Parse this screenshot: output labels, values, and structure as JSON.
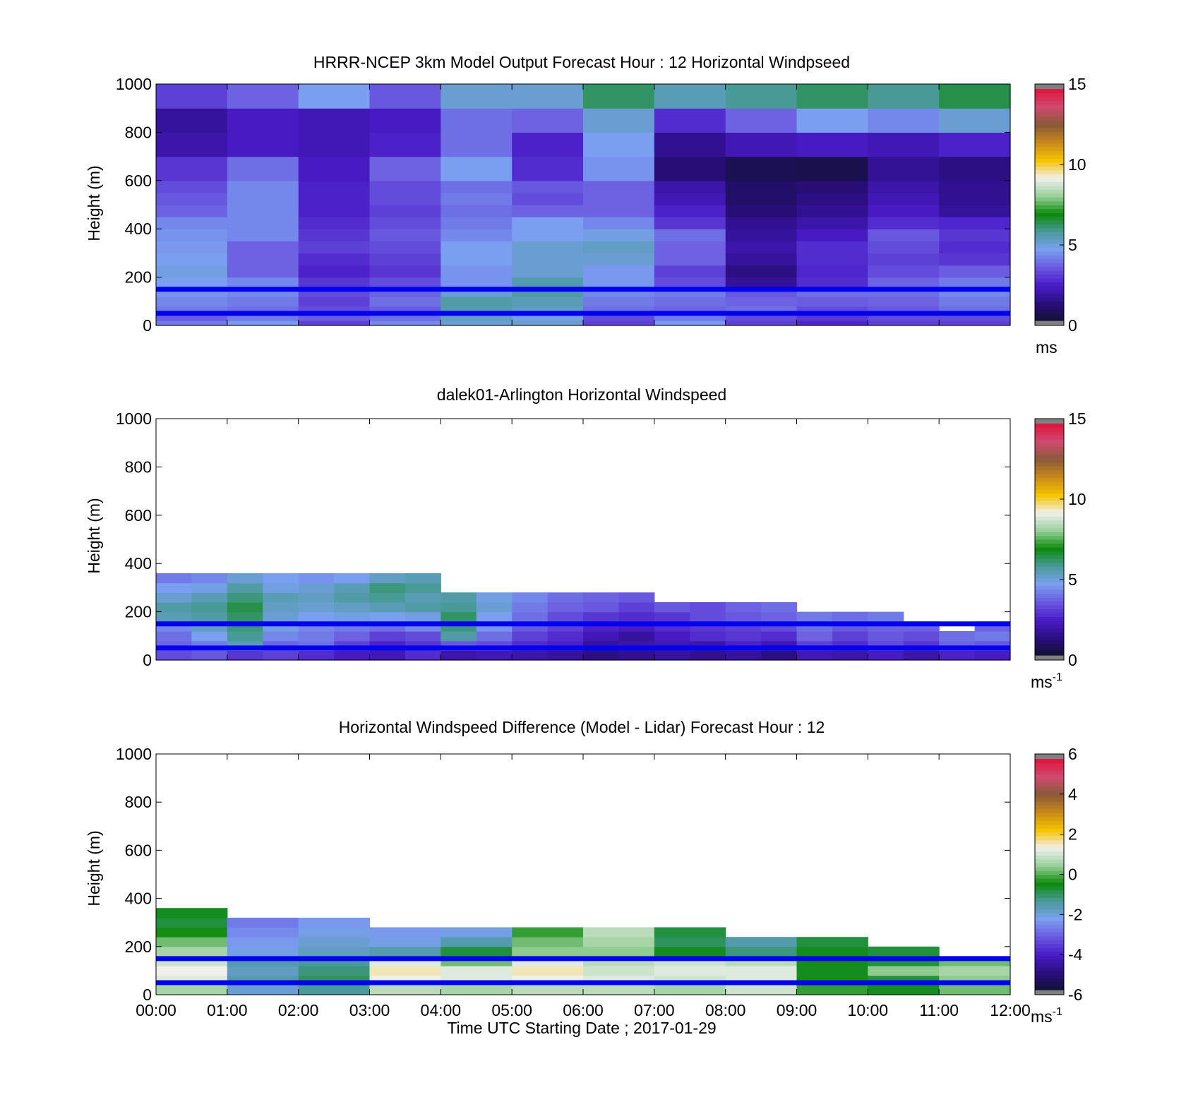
{
  "x_axis": {
    "ticks": [
      "00:00",
      "01:00",
      "02:00",
      "03:00",
      "04:00",
      "05:00",
      "06:00",
      "07:00",
      "08:00",
      "09:00",
      "10:00",
      "11:00",
      "12:00"
    ],
    "label": "Time UTC  Starting Date ; 2017-01-29"
  },
  "y_axis": {
    "label": "Height (m)",
    "ticks": [
      0,
      200,
      400,
      600,
      800,
      1000
    ]
  },
  "reference_lines_m": [
    50,
    150
  ],
  "reference_line_color": "#0000ee",
  "colormaps": {
    "windspeed": [
      "#111133",
      "#2a0e80",
      "#4a1cc8",
      "#6a5ae0",
      "#7aa0f0",
      "#4a9a9a",
      "#0a8a0a",
      "#9ad09a",
      "#f0f0f0",
      "#f5c400",
      "#c88a1a",
      "#8a5a3a",
      "#d04a70",
      "#e0143c"
    ],
    "difference": [
      "#111133",
      "#2a0e80",
      "#4a1cc8",
      "#6a5ae0",
      "#7aa0f0",
      "#4a9a9a",
      "#0a8a0a",
      "#9ad09a",
      "#f0f0f0",
      "#f5c400",
      "#c88a1a",
      "#8a5a3a",
      "#d04a70",
      "#e0143c"
    ]
  },
  "chart_data": [
    {
      "type": "heatmap",
      "title": "HRRR-NCEP 3km Model Output   Forecast Hour : 12 Horizontal Windpseed",
      "ylabel": "Height (m)",
      "ylim": [
        0,
        1000
      ],
      "xlim": [
        "00:00",
        "12:00"
      ],
      "colorbar": {
        "range": [
          0,
          15
        ],
        "ticks": [
          0,
          5,
          10,
          15
        ],
        "unit": "ms",
        "unit_sup": "",
        "colormap": "windspeed"
      },
      "time_bins_h": [
        0,
        1,
        2,
        3,
        4,
        5,
        6,
        7,
        8,
        9,
        10,
        11,
        12
      ],
      "height_bins_m": [
        0,
        20,
        40,
        60,
        80,
        120,
        160,
        200,
        250,
        300,
        350,
        400,
        450,
        500,
        550,
        600,
        700,
        800,
        900,
        1000
      ],
      "values_ms": [
        [
          4.0,
          4.5,
          3.0,
          4.2,
          5.0,
          5.0,
          3.0,
          4.5,
          3.0,
          2.5,
          3.0,
          3.0
        ],
        [
          3.5,
          4.0,
          3.5,
          3.8,
          5.2,
          4.8,
          3.2,
          4.0,
          3.2,
          2.8,
          3.2,
          3.2
        ],
        [
          3.8,
          3.5,
          3.0,
          4.0,
          5.5,
          5.0,
          3.5,
          3.8,
          3.5,
          3.0,
          3.0,
          3.5
        ],
        [
          4.0,
          3.8,
          3.2,
          3.5,
          5.5,
          5.2,
          3.8,
          3.6,
          3.8,
          3.2,
          3.4,
          3.8
        ],
        [
          4.2,
          4.0,
          3.0,
          3.8,
          5.6,
          5.4,
          4.0,
          3.8,
          3.6,
          3.5,
          3.6,
          4.0
        ],
        [
          4.4,
          4.2,
          3.2,
          3.6,
          5.0,
          5.6,
          4.2,
          4.0,
          3.4,
          3.8,
          3.8,
          4.2
        ],
        [
          4.6,
          4.2,
          2.8,
          3.2,
          4.4,
          5.5,
          4.5,
          3.2,
          1.5,
          2.6,
          3.6,
          4.0
        ],
        [
          4.8,
          3.6,
          2.4,
          2.8,
          4.4,
          5.0,
          4.5,
          3.0,
          1.2,
          2.5,
          3.2,
          3.5
        ],
        [
          4.6,
          3.6,
          2.6,
          3.0,
          4.6,
          5.0,
          5.0,
          3.6,
          1.6,
          2.6,
          3.0,
          2.8
        ],
        [
          4.5,
          3.6,
          3.0,
          3.2,
          4.6,
          5.0,
          5.2,
          3.6,
          1.8,
          2.6,
          3.2,
          2.6
        ],
        [
          4.4,
          4.2,
          2.8,
          3.4,
          4.2,
          4.6,
          4.8,
          3.8,
          1.6,
          2.2,
          3.4,
          2.8
        ],
        [
          4.2,
          4.2,
          2.6,
          3.2,
          4.0,
          4.6,
          4.2,
          2.8,
          1.4,
          1.8,
          2.6,
          2.5
        ],
        [
          3.6,
          4.2,
          2.4,
          3.0,
          3.8,
          3.6,
          3.6,
          2.4,
          1.0,
          1.4,
          2.2,
          1.6
        ],
        [
          3.4,
          4.2,
          2.4,
          3.2,
          4.0,
          3.2,
          3.6,
          2.0,
          0.8,
          1.2,
          2.0,
          1.4
        ],
        [
          3.2,
          4.2,
          2.4,
          3.2,
          3.8,
          3.4,
          3.6,
          1.8,
          0.8,
          1.0,
          1.8,
          1.4
        ],
        [
          2.8,
          3.8,
          2.2,
          3.6,
          4.6,
          2.6,
          4.4,
          1.0,
          0.5,
          0.4,
          1.5,
          1.2
        ],
        [
          1.8,
          2.2,
          2.0,
          2.4,
          3.8,
          2.4,
          4.6,
          1.4,
          2.0,
          2.2,
          2.0,
          2.4
        ],
        [
          1.6,
          2.2,
          2.0,
          2.2,
          3.8,
          3.6,
          5.0,
          2.6,
          3.6,
          4.6,
          4.2,
          5.0
        ],
        [
          3.0,
          3.6,
          4.6,
          3.4,
          5.0,
          5.0,
          6.2,
          5.4,
          5.8,
          6.2,
          5.8,
          6.4
        ]
      ]
    },
    {
      "type": "heatmap",
      "title": "dalek01-Arlington  Horizontal Windspeed",
      "ylabel": "Height (m)",
      "ylim": [
        0,
        1000
      ],
      "xlim": [
        "00:00",
        "12:00"
      ],
      "colorbar": {
        "range": [
          0,
          15
        ],
        "ticks": [
          0,
          5,
          10,
          15
        ],
        "unit": "ms",
        "unit_sup": "-1",
        "colormap": "windspeed"
      },
      "time_bins_h": [
        0,
        0.5,
        1,
        1.5,
        2,
        2.5,
        3,
        3.5,
        4,
        4.5,
        5,
        5.5,
        6,
        6.5,
        7,
        7.5,
        8,
        8.5,
        9,
        9.5,
        10,
        10.5,
        11,
        11.5,
        12
      ],
      "height_bins_m": [
        0,
        40,
        80,
        120,
        160,
        200,
        240,
        280,
        320,
        360
      ],
      "values_ms": [
        [
          3.2,
          3.4,
          2.8,
          3.0,
          2.6,
          2.2,
          2.0,
          2.6,
          1.8,
          2.0,
          1.8,
          1.6,
          1.2,
          1.4,
          1.6,
          1.4,
          1.6,
          1.2,
          2.0,
          1.8,
          2.2,
          1.8,
          2.4,
          2.2
        ],
        [
          3.6,
          4.0,
          5.4,
          3.6,
          3.8,
          3.0,
          2.4,
          2.8,
          3.4,
          3.2,
          2.6,
          2.4,
          1.6,
          1.8,
          2.0,
          1.8,
          2.4,
          2.0,
          3.0,
          2.6,
          3.2,
          2.8,
          3.6,
          3.4
        ],
        [
          3.8,
          4.6,
          5.8,
          4.2,
          4.0,
          3.6,
          3.0,
          3.2,
          5.6,
          3.8,
          3.0,
          2.6,
          2.0,
          1.6,
          2.2,
          2.6,
          2.8,
          2.6,
          3.6,
          3.0,
          3.4,
          3.2,
          3.8,
          4.0
        ],
        [
          4.2,
          5.2,
          6.0,
          4.8,
          4.2,
          4.0,
          3.8,
          4.2,
          6.0,
          4.4,
          3.4,
          3.0,
          2.4,
          2.2,
          2.6,
          2.8,
          3.0,
          3.2,
          3.8,
          3.4,
          3.6,
          3.6,
          null,
          3.6
        ],
        [
          5.4,
          5.6,
          6.2,
          5.0,
          4.6,
          4.8,
          4.6,
          4.8,
          6.2,
          4.6,
          3.8,
          3.2,
          2.8,
          2.6,
          2.8,
          3.2,
          3.4,
          3.6,
          4.0,
          3.8,
          4.0,
          null,
          null,
          null
        ],
        [
          5.6,
          5.8,
          6.4,
          5.2,
          5.0,
          5.2,
          5.4,
          5.6,
          5.8,
          5.0,
          4.0,
          3.6,
          3.4,
          3.0,
          3.4,
          3.2,
          3.6,
          3.8,
          null,
          null,
          null,
          null,
          null,
          null
        ],
        [
          5.0,
          5.4,
          6.0,
          5.4,
          5.2,
          5.6,
          5.8,
          5.4,
          5.6,
          4.8,
          4.2,
          3.8,
          3.6,
          3.4,
          null,
          null,
          null,
          null,
          null,
          null,
          null,
          null,
          null,
          null
        ],
        [
          4.6,
          4.8,
          5.6,
          4.8,
          5.0,
          5.4,
          6.0,
          5.8,
          null,
          null,
          null,
          null,
          null,
          null,
          null,
          null,
          null,
          null,
          null,
          null,
          null,
          null,
          null,
          null
        ],
        [
          4.0,
          4.2,
          5.0,
          4.6,
          4.4,
          4.6,
          5.2,
          5.4,
          null,
          null,
          null,
          null,
          null,
          null,
          null,
          null,
          null,
          null,
          null,
          null,
          null,
          null,
          null,
          null
        ]
      ]
    },
    {
      "type": "heatmap",
      "title": "Horizontal Windspeed Difference (Model - Lidar) Forecast Hour : 12",
      "ylabel": "Height (m)",
      "xlabel": "Time UTC  Starting Date ; 2017-01-29",
      "ylim": [
        0,
        1000
      ],
      "xlim": [
        "00:00",
        "12:00"
      ],
      "colorbar": {
        "range": [
          -6,
          6
        ],
        "ticks": [
          -6,
          -4,
          -2,
          0,
          2,
          4,
          6
        ],
        "unit": "ms",
        "unit_sup": "-1",
        "colormap": "difference"
      },
      "time_bins_h": [
        0,
        1,
        2,
        3,
        4,
        5,
        6,
        7,
        8,
        9,
        10,
        11,
        12
      ],
      "height_bins_m": [
        0,
        40,
        80,
        120,
        160,
        200,
        240,
        280,
        320,
        360
      ],
      "values_ms": [
        [
          0.6,
          -2.0,
          -1.4,
          0.8,
          0.6,
          0.8,
          0.8,
          0.6,
          1.0,
          -0.2,
          -0.6,
          0.2
        ],
        [
          1.2,
          -1.6,
          -1.0,
          1.4,
          1.2,
          1.4,
          1.2,
          1.0,
          1.2,
          -0.4,
          -0.8,
          0.4
        ],
        [
          1.4,
          -1.8,
          -1.2,
          1.6,
          1.2,
          1.6,
          1.0,
          1.2,
          1.2,
          -0.6,
          0.4,
          0.6
        ],
        [
          1.0,
          -1.6,
          -1.4,
          1.2,
          0.2,
          1.2,
          0.8,
          1.0,
          0.8,
          -0.4,
          -0.8,
          0.2
        ],
        [
          0.6,
          -2.2,
          -1.8,
          -1.6,
          -0.8,
          0.4,
          0.4,
          -0.6,
          -1.2,
          -0.6,
          -0.8,
          null
        ],
        [
          0.2,
          -2.4,
          -2.0,
          -2.2,
          -1.6,
          0.2,
          0.6,
          -1.0,
          -1.6,
          -0.8,
          null,
          null
        ],
        [
          -0.4,
          -2.6,
          -2.2,
          -2.4,
          -2.2,
          -0.2,
          0.8,
          -0.8,
          null,
          null,
          null,
          null
        ],
        [
          -0.8,
          -2.8,
          -2.4,
          null,
          null,
          null,
          null,
          null,
          null,
          null,
          null,
          null
        ],
        [
          -0.6,
          null,
          null,
          null,
          null,
          null,
          null,
          null,
          null,
          null,
          null,
          null
        ]
      ]
    }
  ]
}
